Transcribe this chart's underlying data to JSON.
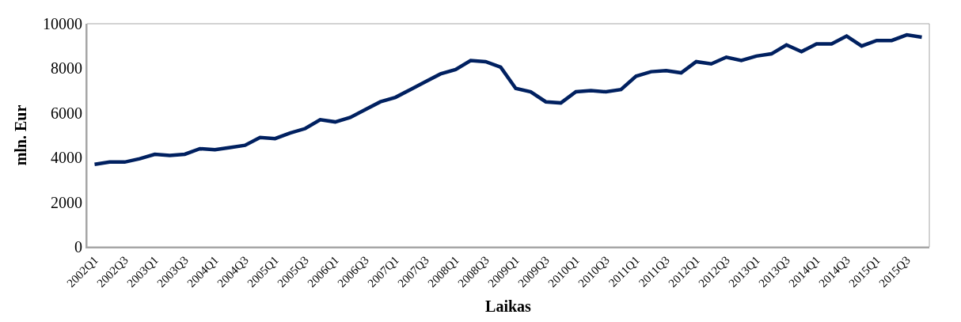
{
  "chart_data": {
    "type": "line",
    "xlabel": "Laikas",
    "ylabel": "mln. Eur",
    "categories": [
      "2002Q1",
      null,
      "2002Q3",
      null,
      "2003Q1",
      null,
      "2003Q3",
      null,
      "2004Q1",
      null,
      "2004Q3",
      null,
      "2005Q1",
      null,
      "2005Q3",
      null,
      "2006Q1",
      null,
      "2006Q3",
      null,
      "2007Q1",
      null,
      "2007Q3",
      null,
      "2008Q1",
      null,
      "2008Q3",
      null,
      "2009Q1",
      null,
      "2009Q3",
      null,
      "2010Q1",
      null,
      "2010Q3",
      null,
      "2011Q1",
      null,
      "2011Q3",
      null,
      "2012Q1",
      null,
      "2012Q3",
      null,
      "2013Q1",
      null,
      "2013Q3",
      null,
      "2014Q1",
      null,
      "2014Q3",
      null,
      "2015Q1",
      null,
      "2015Q3",
      null
    ],
    "series": [
      {
        "color": "#002060",
        "values": [
          3700,
          3800,
          3800,
          3950,
          4150,
          4100,
          4150,
          4400,
          4350,
          4450,
          4550,
          4900,
          4850,
          5100,
          5300,
          5700,
          5600,
          5800,
          6150,
          6500,
          6700,
          7050,
          7400,
          7750,
          7950,
          8350,
          8300,
          8050,
          7100,
          6950,
          6500,
          6450,
          6950,
          7000,
          6950,
          7050,
          7650,
          7850,
          7900,
          7800,
          8300,
          8200,
          8500,
          8350,
          8550,
          8650,
          9050,
          8750,
          9100,
          9100,
          9450,
          9000,
          9250,
          9250,
          9500,
          9400
        ]
      }
    ],
    "ylim": [
      0,
      10000
    ],
    "yticks": [
      0,
      2000,
      4000,
      6000,
      8000,
      10000
    ],
    "marker": "none",
    "line_style": "solid"
  }
}
